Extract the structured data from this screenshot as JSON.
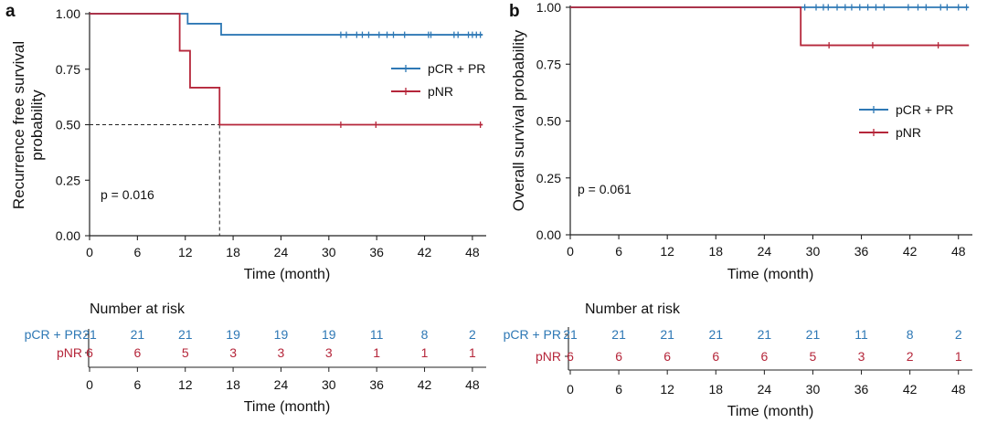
{
  "colors": {
    "blue": "#2e78b5",
    "red": "#b5263a",
    "axis": "#222222",
    "text": "#111111"
  },
  "chart_data": [
    {
      "type": "line",
      "panel_label": "a",
      "ylabel_lines": [
        "Recurrence free survival",
        "probability"
      ],
      "xlabel": "Time (month)",
      "xlim": [
        0,
        49.5
      ],
      "xticks": [
        0,
        6,
        12,
        18,
        24,
        30,
        36,
        42,
        48
      ],
      "ylim": [
        0,
        1
      ],
      "yticks": [
        "0.00",
        "0.25",
        "0.50",
        "0.75",
        "1.00"
      ],
      "pvalue": "p = 0.016",
      "legend": [
        "pCR + PR",
        "pNR"
      ],
      "median_line": {
        "x": 16.3,
        "y": 0.5
      },
      "series": [
        {
          "name": "pCR + PR",
          "color": "blue",
          "steps": [
            [
              0,
              1.0
            ],
            [
              12.3,
              0.955
            ],
            [
              16.5,
              0.905
            ],
            [
              49.3,
              0.905
            ]
          ],
          "censors": [
            31.5,
            32.2,
            33.5,
            34.2,
            35.0,
            36.3,
            37.3,
            38.1,
            39.5,
            42.5,
            42.8,
            45.7,
            46.2,
            47.5,
            48.0,
            48.5,
            49.0
          ]
        },
        {
          "name": "pNR",
          "color": "red",
          "steps": [
            [
              0,
              1.0
            ],
            [
              11.3,
              0.833
            ],
            [
              12.6,
              0.667
            ],
            [
              16.3,
              0.5
            ],
            [
              49.3,
              0.5
            ]
          ],
          "censors": [
            31.5,
            35.9,
            49.0
          ]
        }
      ],
      "risk_table": {
        "title": "Number at risk",
        "rows": [
          {
            "label": "pCR + PR",
            "color": "blue",
            "values": [
              "21",
              "21",
              "21",
              "19",
              "19",
              "19",
              "11",
              "8",
              "2"
            ]
          },
          {
            "label": "pNR",
            "color": "red",
            "values": [
              "6",
              "6",
              "5",
              "3",
              "3",
              "3",
              "1",
              "1",
              "1"
            ]
          }
        ],
        "xlabel": "Time (month)"
      }
    },
    {
      "type": "line",
      "panel_label": "b",
      "ylabel_lines": [
        "Overall survival probability"
      ],
      "xlabel": "Time (month)",
      "xlim": [
        0,
        49.5
      ],
      "xticks": [
        0,
        6,
        12,
        18,
        24,
        30,
        36,
        42,
        48
      ],
      "ylim": [
        0,
        1
      ],
      "yticks": [
        "0.00",
        "0.25",
        "0.50",
        "0.75",
        "1.00"
      ],
      "pvalue": "p = 0.061",
      "legend": [
        "pCR + PR",
        "pNR"
      ],
      "median_line": null,
      "series": [
        {
          "name": "pCR + PR",
          "color": "blue",
          "steps": [
            [
              0,
              1.0
            ],
            [
              49.3,
              1.0
            ]
          ],
          "censors": [
            29.0,
            30.4,
            31.3,
            31.9,
            33.0,
            34.0,
            34.8,
            35.8,
            36.8,
            37.8,
            38.8,
            41.8,
            43.0,
            44.0,
            45.8,
            46.6,
            48.0,
            49.0
          ]
        },
        {
          "name": "pNR",
          "color": "red",
          "steps": [
            [
              0,
              1.0
            ],
            [
              28.5,
              0.833
            ],
            [
              49.3,
              0.833
            ]
          ],
          "censors": [
            32.0,
            37.4,
            45.5
          ]
        }
      ],
      "risk_table": {
        "title": "Number at risk",
        "rows": [
          {
            "label": "pCR + PR",
            "color": "blue",
            "values": [
              "21",
              "21",
              "21",
              "21",
              "21",
              "21",
              "11",
              "8",
              "2"
            ]
          },
          {
            "label": "pNR",
            "color": "red",
            "values": [
              "6",
              "6",
              "6",
              "6",
              "6",
              "5",
              "3",
              "2",
              "1"
            ]
          }
        ],
        "xlabel": "Time (month)"
      }
    }
  ]
}
